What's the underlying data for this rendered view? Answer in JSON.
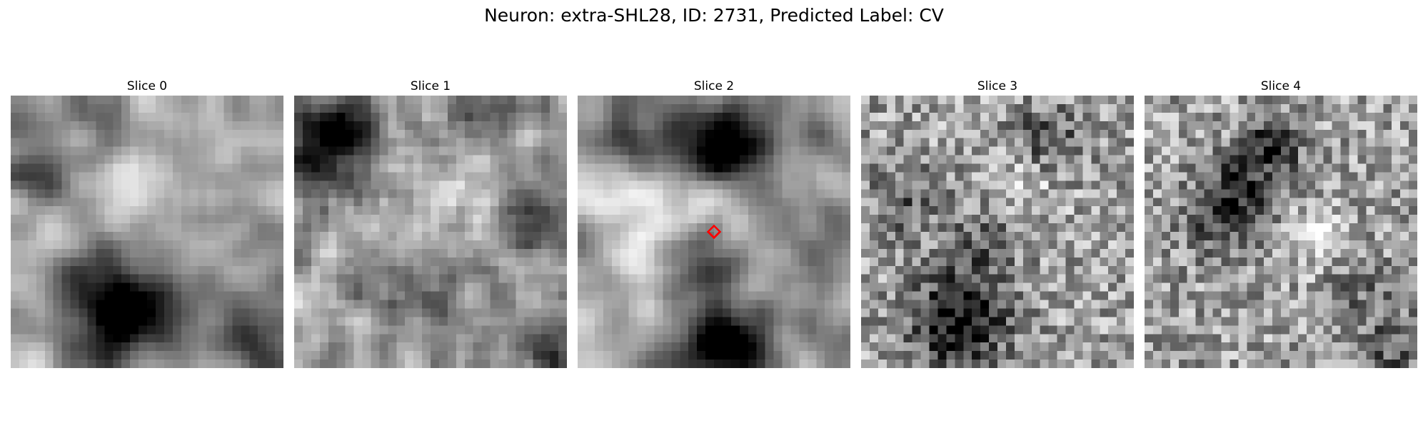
{
  "figure": {
    "title": "Neuron: extra-SHL28, ID: 2731, Predicted Label: CV"
  },
  "slices": [
    {
      "title": "Slice 0"
    },
    {
      "title": "Slice 1"
    },
    {
      "title": "Slice 2"
    },
    {
      "title": "Slice 3"
    },
    {
      "title": "Slice 4"
    }
  ],
  "marker": {
    "slice_index": 2,
    "shape": "diamond",
    "color": "#ff0000",
    "position": "image center"
  },
  "colormap": "gray"
}
